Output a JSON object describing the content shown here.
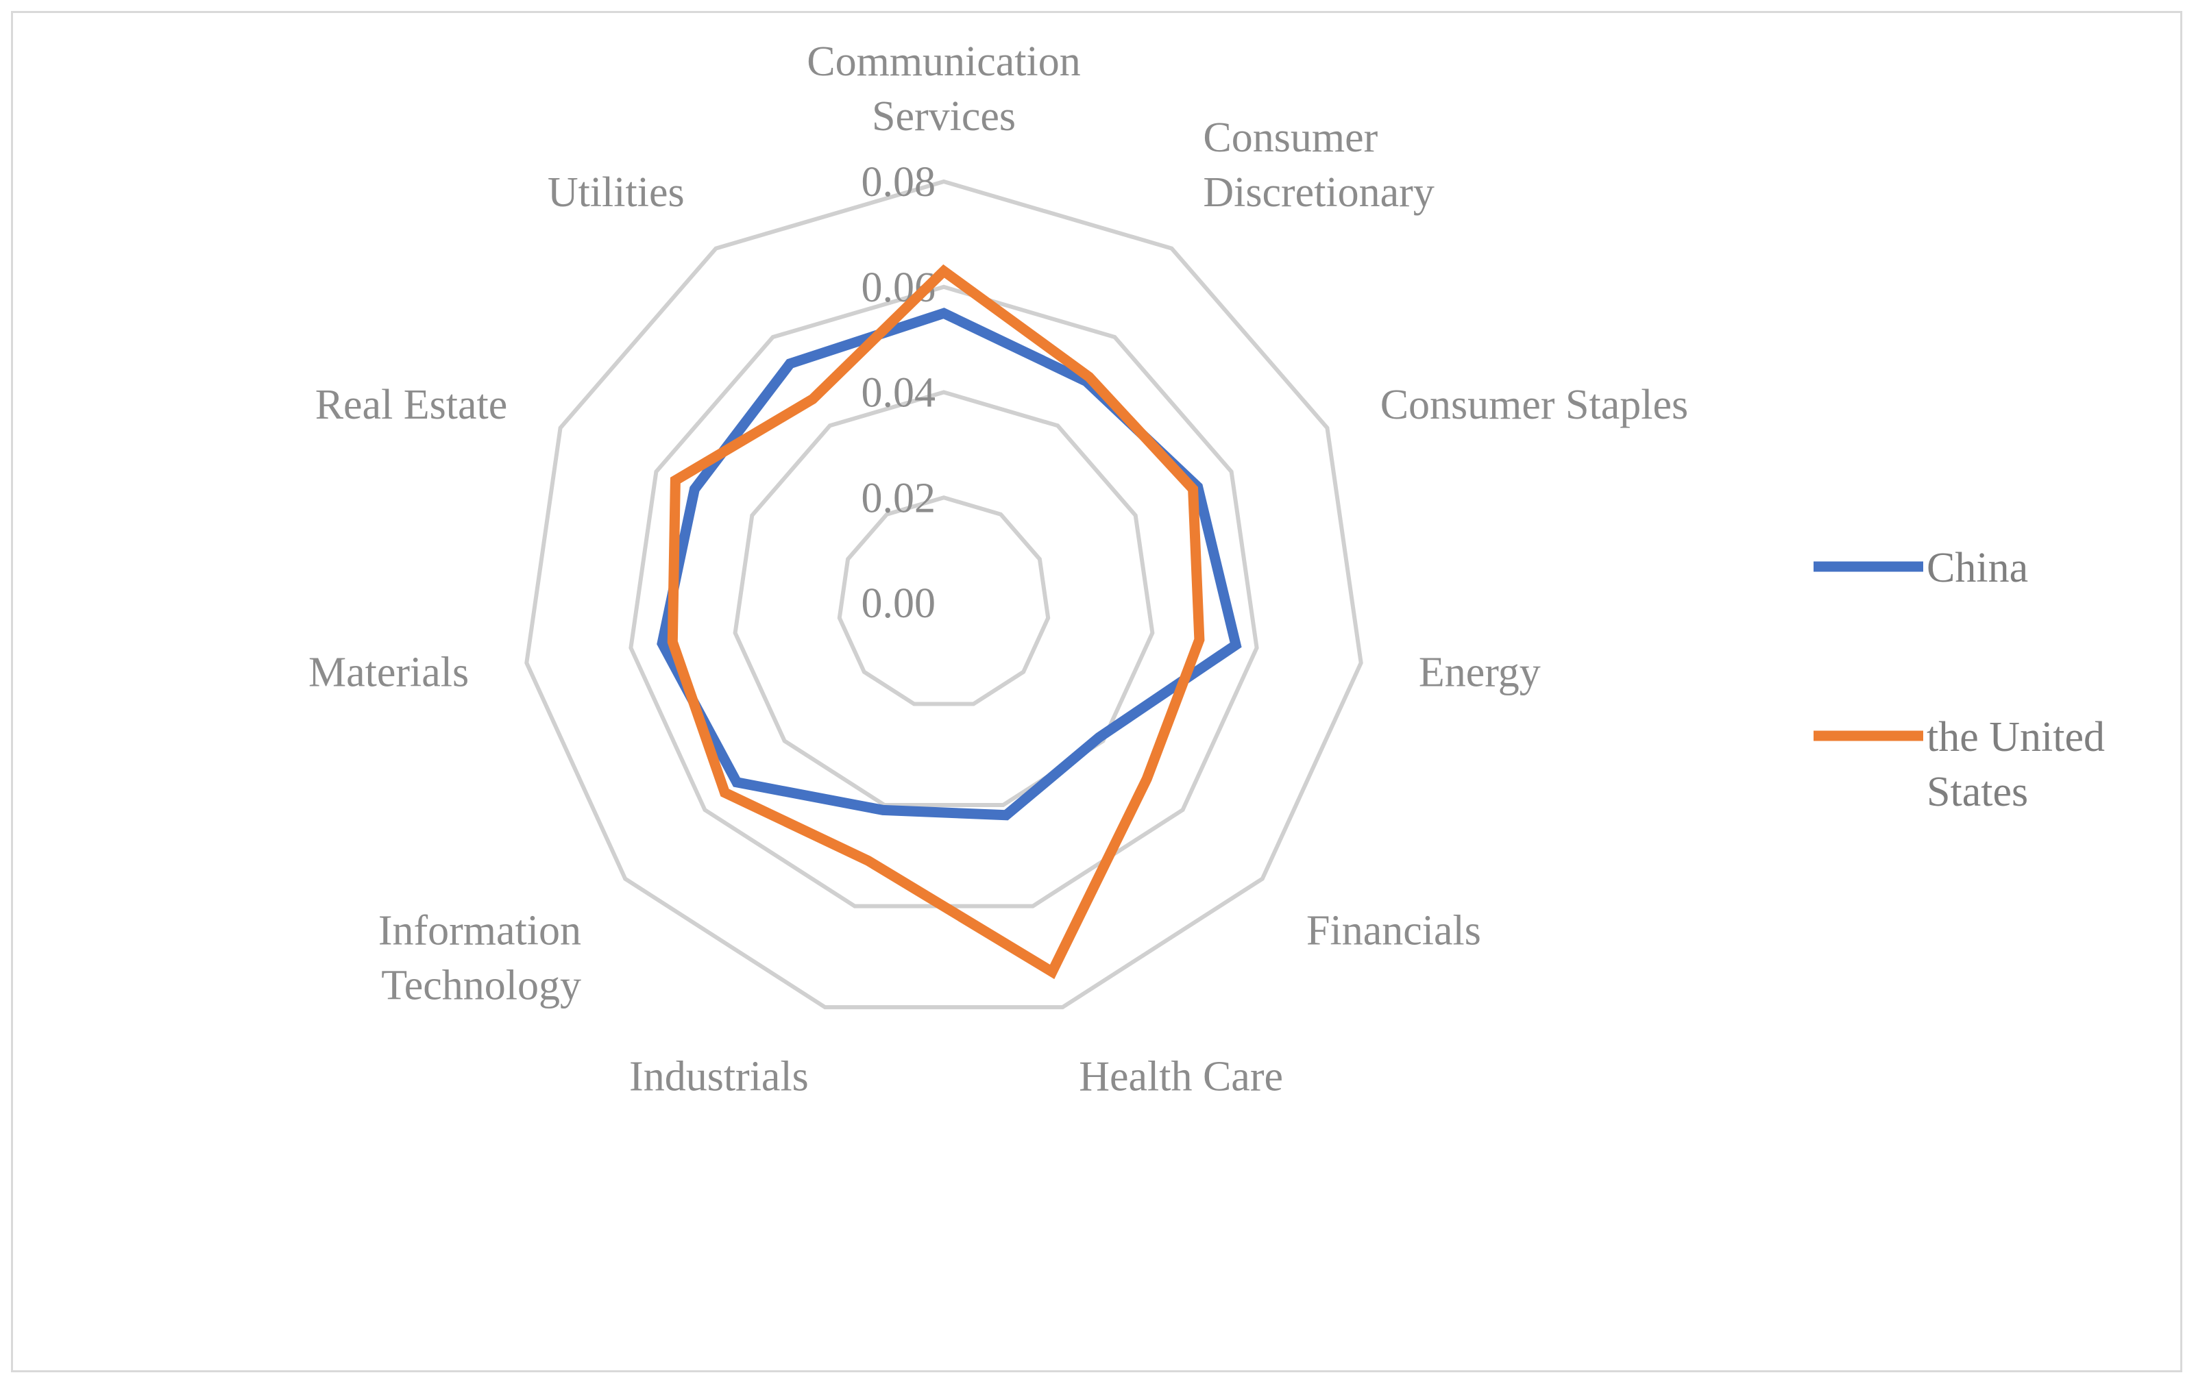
{
  "colors": {
    "china": "#4472c4",
    "us": "#ed7d31",
    "grid": "#d0d0d0",
    "text": "#8c8c8c"
  },
  "chart_data": {
    "type": "radar",
    "categories": [
      "Communication Services",
      "Consumer Discretionary",
      "Consumer Staples",
      "Energy",
      "Financials",
      "Health Care",
      "Industrials",
      "Information Technology",
      "Materials",
      "Real Estate",
      "Utilities"
    ],
    "category_label_lines": [
      [
        "Communication",
        "Services"
      ],
      [
        "Consumer",
        "Discretionary"
      ],
      [
        "Consumer Staples"
      ],
      [
        "Energy"
      ],
      [
        "Financials"
      ],
      [
        "Health Care"
      ],
      [
        "Industrials"
      ],
      [
        "Information",
        "Technology"
      ],
      [
        "Materials"
      ],
      [
        "Real Estate"
      ],
      [
        "Utilities"
      ]
    ],
    "radial_ticks": [
      "0.00",
      "0.02",
      "0.04",
      "0.06",
      "0.08"
    ],
    "rlim": [
      0,
      0.08
    ],
    "grid": true,
    "legend_position": "right",
    "series": [
      {
        "name": "China",
        "legend_lines": [
          "China"
        ],
        "color": "#4472c4",
        "values": [
          0.055,
          0.05,
          0.053,
          0.056,
          0.039,
          0.042,
          0.041,
          0.052,
          0.054,
          0.052,
          0.054
        ]
      },
      {
        "name": "the United States",
        "legend_lines": [
          "the United",
          "States"
        ],
        "color": "#ed7d31",
        "values": [
          0.063,
          0.051,
          0.052,
          0.049,
          0.051,
          0.073,
          0.051,
          0.055,
          0.052,
          0.056,
          0.046
        ]
      }
    ]
  }
}
